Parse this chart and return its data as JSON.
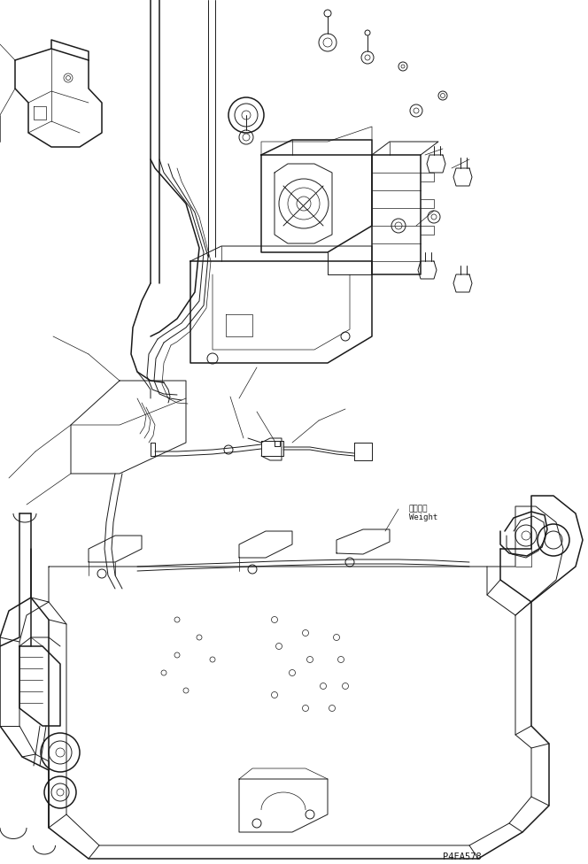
{
  "background_color": "#ffffff",
  "part_code": "P4FA578",
  "annotation_weight_jp": "ウェイト",
  "annotation_weight_en": "Weight",
  "fig_width": 6.64,
  "fig_height": 9.76,
  "line_color": "#1a1a1a",
  "line_width": 0.7,
  "lw_thick": 1.1,
  "lw_thin": 0.5
}
